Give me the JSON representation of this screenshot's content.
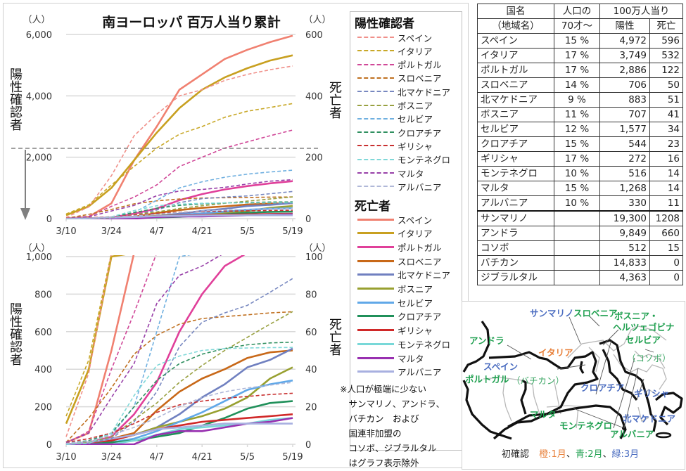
{
  "title": "南ヨーロッパ 百万人当り累計",
  "axis_unit_left": "（人）",
  "axis_unit_right": "（人）",
  "ylabel_left": "陽性確認者",
  "ylabel_right": "死亡者",
  "legend": {
    "positive_header": "陽性確認者",
    "death_header": "死亡者"
  },
  "countries": [
    {
      "name": "スペイン",
      "color": "#f08070",
      "pos_color": "#f0908a"
    },
    {
      "name": "イタリア",
      "color": "#c8a020",
      "pos_color": "#c8a828"
    },
    {
      "name": "ポルトガル",
      "color": "#e0409a",
      "pos_color": "#d04898"
    },
    {
      "name": "スロベニア",
      "color": "#c86818",
      "pos_color": "#c07020"
    },
    {
      "name": "北マケドニア",
      "color": "#7080c0",
      "pos_color": "#7888c0"
    },
    {
      "name": "ボスニア",
      "color": "#98a030",
      "pos_color": "#98a040"
    },
    {
      "name": "セルビア",
      "color": "#60a8e8",
      "pos_color": "#70b0e0"
    },
    {
      "name": "クロアチア",
      "color": "#20905a",
      "pos_color": "#309060"
    },
    {
      "name": "ギリシャ",
      "color": "#d02828",
      "pos_color": "#c83030"
    },
    {
      "name": "モンテネグロ",
      "color": "#78d8d8",
      "pos_color": "#80d8d8"
    },
    {
      "name": "マルタ",
      "color": "#9830b0",
      "pos_color": "#9840a8"
    },
    {
      "name": "アルバニア",
      "color": "#a8b0e0",
      "pos_color": "#b0b8d8"
    }
  ],
  "note": [
    "※人口が極端に少ない",
    "　サンマリノ、アンドラ、",
    "　バチカン　および",
    "　国連非加盟の",
    "　コソボ、ジブラルタル",
    "　はグラフ表示除外"
  ],
  "table": {
    "header": {
      "col1_line1": "国名",
      "col1_line2": "（地域名）",
      "col2_line1": "人口の",
      "col2_line2": "70才～",
      "group": "100万人当り",
      "col3": "陽性",
      "col4": "死亡"
    },
    "rows": [
      {
        "name": "スペイン",
        "pct": "15 %",
        "pos": "4,972",
        "death": "596"
      },
      {
        "name": "イタリア",
        "pct": "17 %",
        "pos": "3,749",
        "death": "532"
      },
      {
        "name": "ポルトガル",
        "pct": "17 %",
        "pos": "2,886",
        "death": "122"
      },
      {
        "name": "スロベニア",
        "pct": "14 %",
        "pos": "706",
        "death": "50"
      },
      {
        "name": "北マケドニア",
        "pct": "9 %",
        "pos": "883",
        "death": "51"
      },
      {
        "name": "ボスニア",
        "pct": "11 %",
        "pos": "707",
        "death": "41"
      },
      {
        "name": "セルビア",
        "pct": "12 %",
        "pos": "1,577",
        "death": "34"
      },
      {
        "name": "クロアチア",
        "pct": "15 %",
        "pos": "544",
        "death": "23"
      },
      {
        "name": "ギリシャ",
        "pct": "17 %",
        "pos": "272",
        "death": "16"
      },
      {
        "name": "モンテネグロ",
        "pct": "10 %",
        "pos": "516",
        "death": "14"
      },
      {
        "name": "マルタ",
        "pct": "15 %",
        "pos": "1,268",
        "death": "14"
      },
      {
        "name": "アルバニア",
        "pct": "10 %",
        "pos": "330",
        "death": "11"
      }
    ],
    "extra_rows": [
      {
        "name": "サンマリノ",
        "pct": "",
        "pos": "19,300",
        "death": "1208"
      },
      {
        "name": "アンドラ",
        "pct": "",
        "pos": "9,849",
        "death": "660"
      },
      {
        "name": "コソボ",
        "pct": "",
        "pos": "512",
        "death": "15"
      },
      {
        "name": "バチカン",
        "pct": "",
        "pos": "14,833",
        "death": "0"
      },
      {
        "name": "ジブラルタル",
        "pct": "",
        "pos": "4,363",
        "death": "0"
      }
    ]
  },
  "map": {
    "labels": [
      {
        "text": "サンマリノ",
        "group": "blue"
      },
      {
        "text": "スロベニア",
        "group": "green"
      },
      {
        "text": "ボスニア・",
        "group": "green"
      },
      {
        "text": "ヘルツェゴビナ",
        "group": "green"
      },
      {
        "text": "セルビア",
        "group": "green"
      },
      {
        "text": "アンドラ",
        "group": "green"
      },
      {
        "text": "イタリア",
        "group": "orange"
      },
      {
        "text": "（コソボ）",
        "group": "green-light"
      },
      {
        "text": "スペイン",
        "group": "blue"
      },
      {
        "text": "ポルトガル",
        "group": "green"
      },
      {
        "text": "（バチカン）",
        "group": "green-light"
      },
      {
        "text": "クロアチア",
        "group": "blue"
      },
      {
        "text": "ギリシャ",
        "group": "blue"
      },
      {
        "text": "マルタ",
        "group": "green"
      },
      {
        "text": "北マケドニア",
        "group": "blue"
      },
      {
        "text": "モンテネグロ",
        "group": "green"
      },
      {
        "text": "アルバニア",
        "group": "green"
      }
    ],
    "caption_prefix": "初確認",
    "caption_orange": "橙:1月",
    "caption_sep1": "、",
    "caption_blue": "青:2月",
    "caption_sep2": "、",
    "caption_green": "緑:3月",
    "colors": {
      "orange": "#e8803a",
      "blue": "#4a6cc0",
      "green": "#20a050",
      "green-light": "#40a868"
    }
  },
  "chart_data": [
    {
      "type": "line",
      "title": "南ヨーロッパ 百万人当り累計",
      "panel": "top",
      "x": [
        "3/10",
        "3/17",
        "3/24",
        "3/31",
        "4/7",
        "4/14",
        "4/21",
        "4/28",
        "5/5",
        "5/12",
        "5/19"
      ],
      "xticks": [
        "3/10",
        "3/24",
        "4/7",
        "4/21",
        "5/5",
        "5/19"
      ],
      "ylabel_left": "陽性確認者（人）",
      "ylabel_right": "死亡者（人）",
      "ylim_left": [
        0,
        6000
      ],
      "ylim_right": [
        0,
        600
      ],
      "yticks_left": [
        "0",
        "2,000",
        "4,000",
        "6,000"
      ],
      "yticks_right": [
        "0",
        "200",
        "400",
        "600"
      ],
      "grid": true,
      "annotation": "dashed line at ~2,200 with downward arrow indicating zoomed lower panel",
      "series_positive": [
        {
          "name": "スペイン",
          "values": [
            40,
            380,
            1400,
            2700,
            3400,
            4000,
            4200,
            4500,
            4700,
            4850,
            4972
          ]
        },
        {
          "name": "イタリア",
          "values": [
            150,
            450,
            1100,
            1700,
            2300,
            2750,
            3000,
            3300,
            3500,
            3620,
            3749
          ]
        },
        {
          "name": "ポルトガル",
          "values": [
            5,
            70,
            400,
            700,
            1100,
            1700,
            2000,
            2300,
            2500,
            2700,
            2886
          ]
        },
        {
          "name": "スロベニア",
          "values": [
            10,
            140,
            300,
            480,
            580,
            640,
            670,
            680,
            690,
            700,
            706
          ]
        },
        {
          "name": "北マケドニア",
          "values": [
            5,
            10,
            30,
            120,
            280,
            520,
            650,
            700,
            740,
            810,
            883
          ]
        },
        {
          "name": "ボスニア",
          "values": [
            3,
            10,
            40,
            130,
            220,
            330,
            420,
            500,
            570,
            640,
            707
          ]
        },
        {
          "name": "セルビア",
          "values": [
            5,
            20,
            50,
            200,
            600,
            1000,
            1200,
            1350,
            1450,
            1520,
            1577
          ]
        },
        {
          "name": "クロアチア",
          "values": [
            3,
            20,
            60,
            200,
            340,
            430,
            480,
            510,
            530,
            540,
            544
          ]
        },
        {
          "name": "ギリシャ",
          "values": [
            10,
            30,
            60,
            110,
            170,
            210,
            230,
            245,
            255,
            265,
            272
          ]
        },
        {
          "name": "モンテネグロ",
          "values": [
            0,
            5,
            60,
            260,
            420,
            470,
            500,
            510,
            513,
            515,
            516
          ]
        },
        {
          "name": "マルタ",
          "values": [
            10,
            60,
            250,
            430,
            750,
            900,
            950,
            1020,
            1130,
            1220,
            1268
          ]
        },
        {
          "name": "アルバニア",
          "values": [
            5,
            15,
            50,
            90,
            140,
            200,
            250,
            280,
            300,
            315,
            330
          ]
        }
      ],
      "series_death": [
        {
          "name": "スペイン",
          "values": [
            1,
            6,
            50,
            190,
            300,
            420,
            470,
            520,
            550,
            575,
            596
          ]
        },
        {
          "name": "イタリア",
          "values": [
            11,
            40,
            100,
            190,
            280,
            360,
            420,
            460,
            490,
            515,
            532
          ]
        },
        {
          "name": "ポルトガル",
          "values": [
            0,
            1,
            4,
            16,
            33,
            60,
            80,
            95,
            106,
            115,
            122
          ]
        },
        {
          "name": "スロベニア",
          "values": [
            0,
            1,
            3,
            6,
            18,
            28,
            35,
            40,
            46,
            49,
            50
          ]
        },
        {
          "name": "北マケドニア",
          "values": [
            0,
            1,
            2,
            5,
            9,
            16,
            25,
            32,
            41,
            45,
            51
          ]
        },
        {
          "name": "ボスニア",
          "values": [
            0,
            1,
            2,
            5,
            9,
            12,
            15,
            19,
            25,
            35,
            41
          ]
        },
        {
          "name": "セルビア",
          "values": [
            0,
            0,
            1,
            3,
            7,
            12,
            17,
            23,
            29,
            32,
            34
          ]
        },
        {
          "name": "クロアチア",
          "values": [
            0,
            0,
            1,
            2,
            4,
            6,
            10,
            14,
            19,
            22,
            23
          ]
        },
        {
          "name": "ギリシャ",
          "values": [
            0,
            1,
            2,
            5,
            8,
            10,
            12,
            13,
            14,
            15,
            16
          ]
        },
        {
          "name": "モンテネグロ",
          "values": [
            0,
            0,
            0,
            2,
            5,
            8,
            9,
            10,
            11,
            13,
            14
          ]
        },
        {
          "name": "マルタ",
          "values": [
            0,
            0,
            0,
            0,
            5,
            7,
            7,
            9,
            11,
            12,
            14
          ]
        },
        {
          "name": "アルバニア",
          "values": [
            0,
            1,
            3,
            5,
            8,
            9,
            10,
            11,
            11,
            11,
            11
          ]
        }
      ]
    },
    {
      "type": "line",
      "panel": "bottom",
      "x": [
        "3/10",
        "3/17",
        "3/24",
        "3/31",
        "4/7",
        "4/14",
        "4/21",
        "4/28",
        "5/5",
        "5/12",
        "5/19"
      ],
      "xticks": [
        "3/10",
        "3/24",
        "4/7",
        "4/21",
        "5/5",
        "5/19"
      ],
      "ylabel_left": "陽性確認者（人）",
      "ylabel_right": "死亡者（人）",
      "ylim_left": [
        0,
        1000
      ],
      "ylim_right": [
        0,
        100
      ],
      "yticks_left": [
        "0",
        "200",
        "400",
        "600",
        "800",
        "1,000"
      ],
      "yticks_right": [
        "0",
        "20",
        "40",
        "60",
        "80",
        "100"
      ],
      "grid": true,
      "note": "same series as top panel, zoomed to lower range"
    }
  ]
}
